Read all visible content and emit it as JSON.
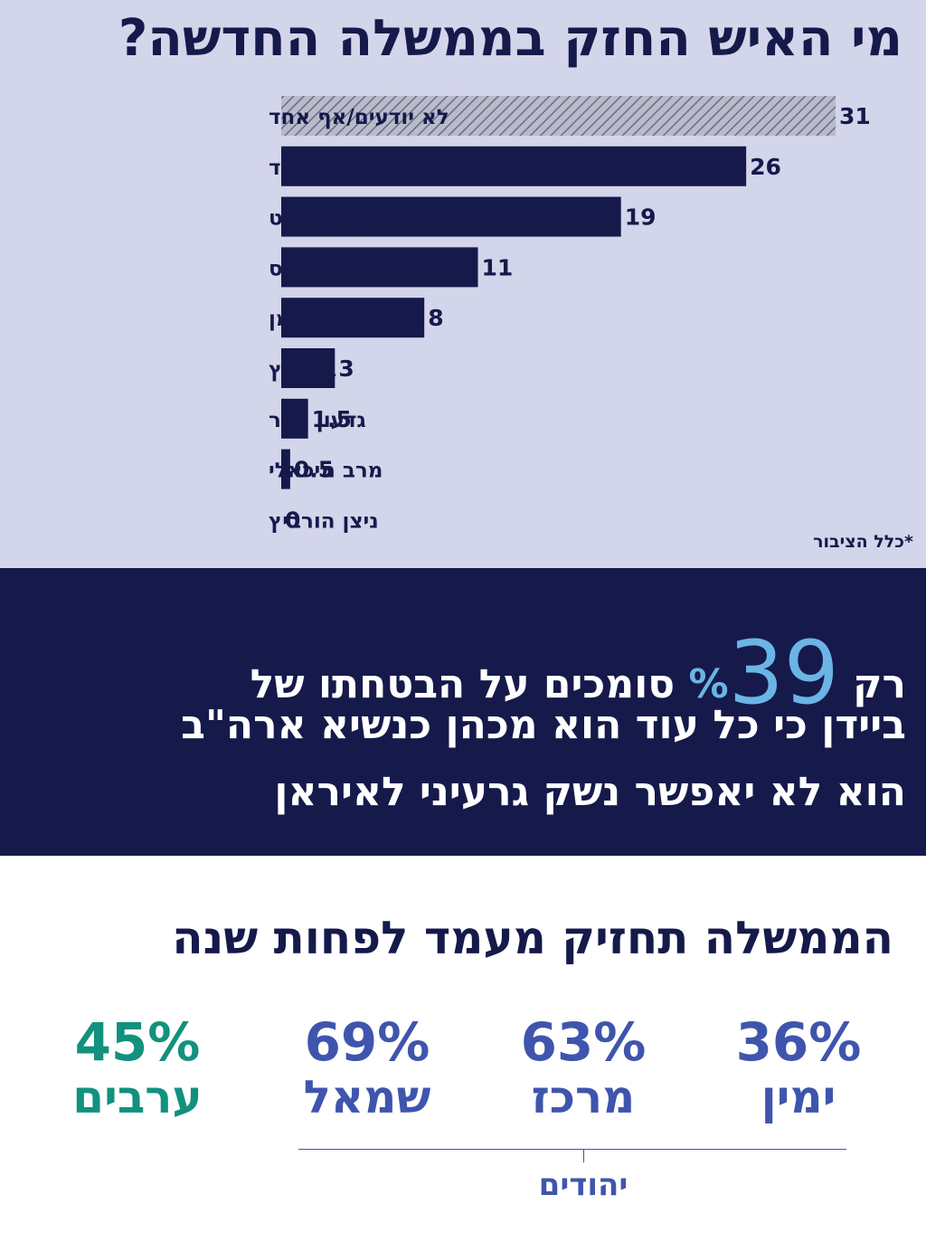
{
  "title": "מי האיש החזק בממשלה החדשה?",
  "footnote": "*כלל הציבור",
  "colors": {
    "navy": "#151a4b",
    "light_bg": "#d3d5ea",
    "highlight": "#6bb4e6",
    "blue": "#3f55ad",
    "teal": "#12917e"
  },
  "chart_data": {
    "type": "bar",
    "orientation": "horizontal",
    "title": "מי האיש החזק בממשלה החדשה?",
    "categories": [
      "לא יודעים/אף אחד",
      "יאיר לפיד",
      "נפתלי בנט",
      "מנסור עבאס",
      "אביגדור ליברמן",
      "בני גנץ",
      "גדעון סער",
      "מרב מיכאלי",
      "ניצן הורביץ"
    ],
    "values": [
      31,
      26,
      19,
      11,
      8,
      3,
      1.5,
      0.5,
      0
    ],
    "value_labels": [
      "31",
      "26",
      "19",
      "11",
      "8",
      "3",
      "1.5",
      "0.5",
      "0"
    ],
    "hatched_first_bar": true,
    "xlim": [
      0,
      31
    ],
    "grid": false
  },
  "highlight": {
    "prefix": "רק",
    "number": "39",
    "percent_sign": "%",
    "line1_rest": "סומכים על הבטחתו של",
    "line2": "ביידן כי כל עוד הוא מכהן כנשיא ארה\"ב",
    "line3": "הוא לא יאפשר נשק גרעיני לאיראן"
  },
  "bottom": {
    "title": "הממשלה תחזיק מעמד לפחות שנה",
    "stats": [
      {
        "value": "36%",
        "group": "ימין"
      },
      {
        "value": "63%",
        "group": "מרכז"
      },
      {
        "value": "69%",
        "group": "שמאל"
      },
      {
        "value": "45%",
        "group": "ערבים"
      }
    ],
    "bracket_label": "יהודים"
  }
}
